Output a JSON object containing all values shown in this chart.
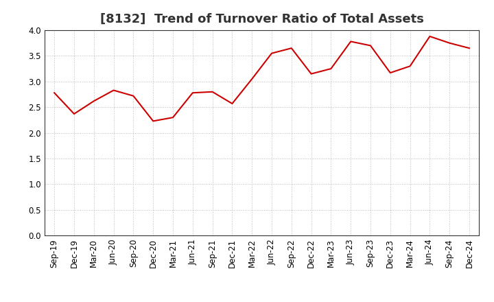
{
  "title": "[8132]  Trend of Turnover Ratio of Total Assets",
  "labels": [
    "Sep-19",
    "Dec-19",
    "Mar-20",
    "Jun-20",
    "Sep-20",
    "Dec-20",
    "Mar-21",
    "Jun-21",
    "Sep-21",
    "Dec-21",
    "Mar-22",
    "Jun-22",
    "Sep-22",
    "Dec-22",
    "Mar-23",
    "Jun-23",
    "Sep-23",
    "Dec-23",
    "Mar-24",
    "Jun-24",
    "Sep-24",
    "Dec-24"
  ],
  "values": [
    2.78,
    2.37,
    2.62,
    2.83,
    2.72,
    2.23,
    2.3,
    2.78,
    2.8,
    2.57,
    3.05,
    3.55,
    3.65,
    3.15,
    3.25,
    3.78,
    3.7,
    3.17,
    3.3,
    3.88,
    3.75,
    3.65
  ],
  "line_color": "#cc0000",
  "line_width": 1.5,
  "ylim": [
    0.0,
    4.0
  ],
  "yticks": [
    0.0,
    0.5,
    1.0,
    1.5,
    2.0,
    2.5,
    3.0,
    3.5,
    4.0
  ],
  "grid_color": "#bbbbbb",
  "bg_color": "#ffffff",
  "title_fontsize": 13,
  "tick_fontsize": 8.5,
  "title_color": "#333333"
}
